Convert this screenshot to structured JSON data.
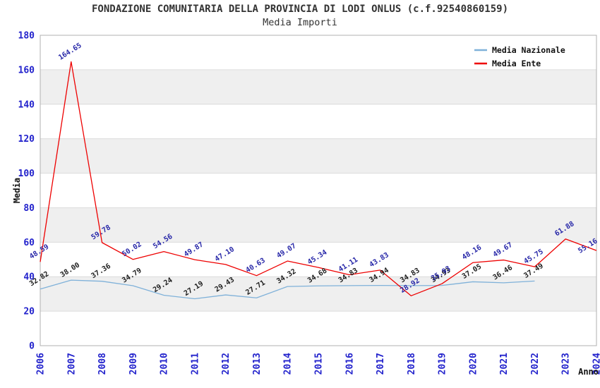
{
  "header": {
    "title": "FONDAZIONE COMUNITARIA DELLA PROVINCIA DI LODI ONLUS (c.f.92540860159)",
    "subtitle": "Media Importi"
  },
  "colors": {
    "tick_label": "#2222cc",
    "title_text": "#333333",
    "axis_text": "#111111",
    "band": "#efefef",
    "grid": "#dcdcdc",
    "plot_border": "#b0b0b0",
    "nazionale_line": "#7fb1d9",
    "ente_line": "#ee0000",
    "nazionale_value_label": "#1c1c1c",
    "ente_value_label": "#2727a8"
  },
  "chart_data": {
    "type": "line",
    "title": "Media Importi",
    "xlabel": "Anno",
    "ylabel": "Media",
    "x": [
      "2006",
      "2007",
      "2008",
      "2009",
      "2010",
      "2011",
      "2012",
      "2013",
      "2014",
      "2015",
      "2016",
      "2017",
      "2018",
      "2019",
      "2020",
      "2021",
      "2022",
      "2023",
      "2024"
    ],
    "ylim": [
      0,
      180
    ],
    "yticks": [
      0,
      20,
      40,
      60,
      80,
      100,
      120,
      140,
      160,
      180
    ],
    "grid": "horizontal-bands",
    "legend_position": "top-right",
    "value_labels": "shown, 2 decimals, rotated",
    "series": [
      {
        "name": "Media Nazionale",
        "color": "#7fb1d9",
        "label_color": "#1c1c1c",
        "values": [
          32.82,
          38.0,
          37.36,
          34.79,
          29.24,
          27.19,
          29.43,
          27.71,
          34.32,
          34.68,
          34.83,
          34.94,
          34.83,
          34.93,
          37.05,
          36.46,
          37.49,
          null,
          null
        ]
      },
      {
        "name": "Media Ente",
        "color": "#ee0000",
        "label_color": "#2727a8",
        "values": [
          48.59,
          164.65,
          59.78,
          50.02,
          54.56,
          49.87,
          47.1,
          40.63,
          49.07,
          45.34,
          41.11,
          43.83,
          28.92,
          35.93,
          48.16,
          49.67,
          45.75,
          61.88,
          55.16
        ]
      }
    ]
  }
}
